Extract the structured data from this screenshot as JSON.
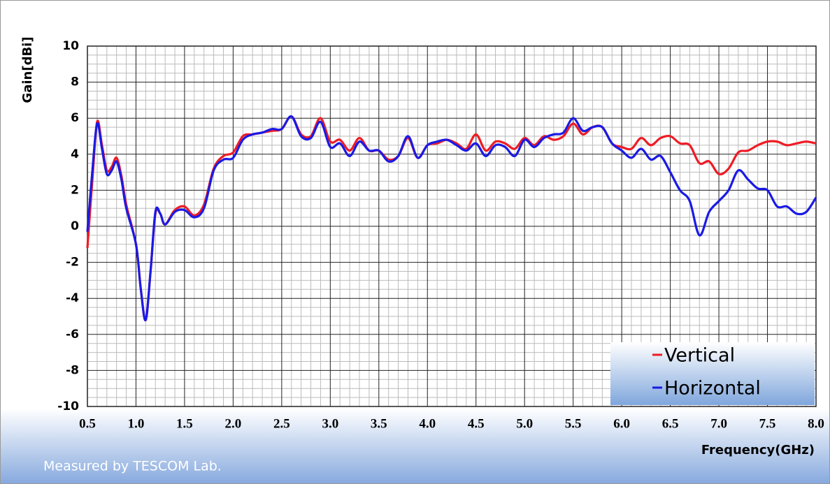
{
  "chart_data": {
    "type": "line",
    "ylabel": "Gain[dBi]",
    "xlabel": "Frequency(GHz)",
    "annotation": "Measured by TESCOM Lab.",
    "x": [
      0.5,
      0.55,
      0.6,
      0.65,
      0.7,
      0.75,
      0.8,
      0.85,
      0.9,
      1.0,
      1.05,
      1.1,
      1.15,
      1.2,
      1.25,
      1.3,
      1.4,
      1.5,
      1.6,
      1.7,
      1.8,
      1.9,
      2.0,
      2.1,
      2.2,
      2.3,
      2.4,
      2.5,
      2.6,
      2.7,
      2.8,
      2.9,
      3.0,
      3.1,
      3.2,
      3.3,
      3.4,
      3.5,
      3.6,
      3.7,
      3.8,
      3.9,
      4.0,
      4.1,
      4.2,
      4.3,
      4.4,
      4.5,
      4.6,
      4.7,
      4.8,
      4.9,
      5.0,
      5.1,
      5.2,
      5.3,
      5.4,
      5.5,
      5.6,
      5.7,
      5.8,
      5.9,
      6.0,
      6.1,
      6.2,
      6.3,
      6.4,
      6.5,
      6.6,
      6.7,
      6.8,
      6.9,
      7.0,
      7.1,
      7.2,
      7.3,
      7.4,
      7.5,
      7.6,
      7.7,
      7.8,
      7.9,
      8.0
    ],
    "series": [
      {
        "name": "Vertical",
        "color": "#ee1c25",
        "values": [
          -1.2,
          2.5,
          5.8,
          4.5,
          3.1,
          3.3,
          3.8,
          2.8,
          1.2,
          -1.0,
          -3.5,
          -5.2,
          -2.5,
          0.7,
          0.7,
          0.1,
          0.9,
          1.1,
          0.6,
          1.2,
          3.2,
          3.9,
          4.1,
          5.0,
          5.1,
          5.2,
          5.3,
          5.4,
          6.1,
          5.1,
          5.0,
          6.0,
          4.7,
          4.8,
          4.2,
          4.9,
          4.2,
          4.2,
          3.7,
          3.9,
          4.9,
          3.8,
          4.5,
          4.6,
          4.8,
          4.6,
          4.3,
          5.1,
          4.2,
          4.7,
          4.6,
          4.3,
          4.9,
          4.5,
          5.0,
          4.8,
          5.0,
          5.7,
          5.1,
          5.5,
          5.5,
          4.6,
          4.4,
          4.3,
          4.9,
          4.5,
          4.9,
          5.0,
          4.6,
          4.5,
          3.5,
          3.6,
          2.9,
          3.2,
          4.1,
          4.2,
          4.5,
          4.7,
          4.7,
          4.5,
          4.6,
          4.7,
          4.6
        ]
      },
      {
        "name": "Horizontal",
        "color": "#1a1ae6",
        "values": [
          -0.3,
          3.0,
          5.7,
          4.3,
          2.9,
          3.1,
          3.6,
          2.6,
          1.0,
          -1.0,
          -3.5,
          -5.2,
          -2.5,
          0.8,
          0.7,
          0.1,
          0.8,
          0.9,
          0.5,
          1.0,
          3.1,
          3.7,
          3.8,
          4.8,
          5.1,
          5.2,
          5.4,
          5.4,
          6.1,
          5.0,
          4.9,
          5.8,
          4.4,
          4.6,
          3.9,
          4.7,
          4.2,
          4.2,
          3.6,
          3.9,
          5.0,
          3.8,
          4.5,
          4.7,
          4.8,
          4.5,
          4.2,
          4.6,
          3.9,
          4.5,
          4.4,
          3.9,
          4.8,
          4.4,
          4.9,
          5.1,
          5.2,
          6.0,
          5.3,
          5.5,
          5.5,
          4.6,
          4.2,
          3.8,
          4.3,
          3.7,
          3.9,
          3.0,
          2.0,
          1.4,
          -0.5,
          0.8,
          1.4,
          2.0,
          3.1,
          2.6,
          2.1,
          2.0,
          1.1,
          1.1,
          0.7,
          0.8,
          1.6
        ]
      }
    ],
    "xlim": [
      0.5,
      8.0
    ],
    "xticks": [
      0.5,
      {
        "value": 1,
        "label": "1.0"
      },
      1.5,
      {
        "value": 2,
        "label": "2.0"
      },
      2.5,
      {
        "value": 3,
        "label": "3.0"
      },
      3.5,
      {
        "value": 4,
        "label": "4.0"
      },
      4.5,
      {
        "value": 5,
        "label": "5.0"
      },
      5.5,
      {
        "value": 6,
        "label": "6.0"
      },
      6.5,
      {
        "value": 7,
        "label": "7.0"
      },
      7.5,
      {
        "value": 8,
        "label": "8.0"
      }
    ],
    "ylim": [
      -10,
      10
    ],
    "yticks": [
      -10,
      -8,
      -6,
      -4,
      -2,
      0,
      2,
      4,
      6,
      8,
      10
    ],
    "grid": true,
    "legend": "lower right"
  }
}
